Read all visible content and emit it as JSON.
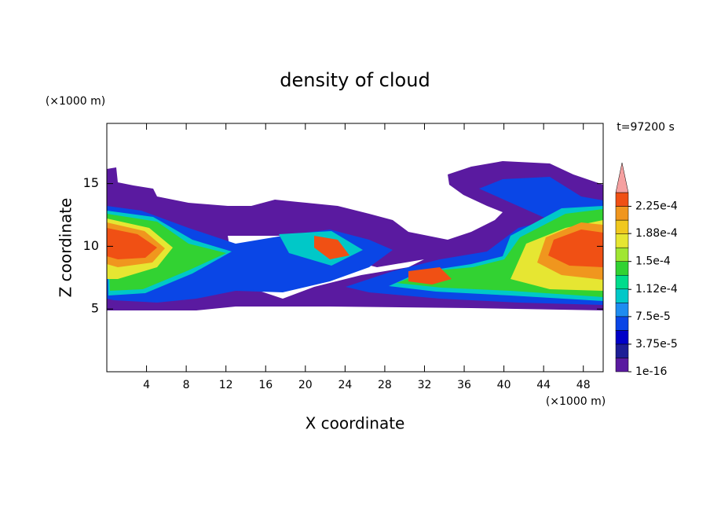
{
  "chart_data": {
    "type": "contour",
    "title": "density of cloud",
    "x_label": "X coordinate",
    "y_label": "Z coordinate",
    "x_unit": "(×1000 m)",
    "y_unit": "(×1000 m)",
    "time_label": "t=97200 s",
    "xlim": [
      0,
      50
    ],
    "xticks": [
      4,
      8,
      12,
      16,
      20,
      24,
      28,
      32,
      36,
      40,
      44,
      48
    ],
    "ylim": [
      0,
      19.8
    ],
    "yticks": [
      5,
      10,
      15
    ],
    "clim": [
      0,
      0.00024375
    ],
    "colors": [
      "#5a1aa0",
      "#1e1e96",
      "#0000c8",
      "#0a46e6",
      "#1e8cf0",
      "#00c8c8",
      "#00dc8c",
      "#32d232",
      "#a0e632",
      "#e6e632",
      "#f0c81e",
      "#f0961e",
      "#f05014",
      "#e61e1e"
    ],
    "cticks": [
      {
        "value": 1e-16,
        "label": "1e-16"
      },
      {
        "value": 3.75e-05,
        "label": "3.75e-5"
      },
      {
        "value": 7.5e-05,
        "label": "7.5e-5"
      },
      {
        "value": 0.000112,
        "label": "1.12e-4"
      },
      {
        "value": 0.00015,
        "label": "1.5e-4"
      },
      {
        "value": 0.000188,
        "label": "1.88e-4"
      },
      {
        "value": 0.000225,
        "label": "2.25e-4"
      }
    ]
  }
}
